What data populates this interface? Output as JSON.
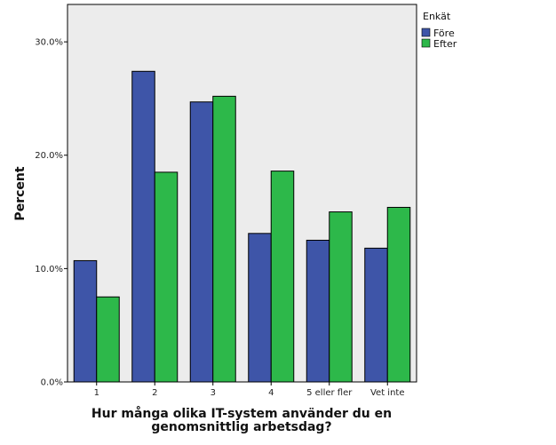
{
  "chart_data": {
    "type": "bar",
    "title": "",
    "xlabel_lines": [
      "Hur många olika IT-system använder du en",
      "genomsnittlig arbetsdag?"
    ],
    "ylabel": "Percent",
    "categories": [
      "1",
      "2",
      "3",
      "4",
      "5 eller fler",
      "Vet inte"
    ],
    "series": [
      {
        "name": "Före",
        "color": "#3e55a8",
        "values": [
          10.7,
          27.4,
          24.7,
          13.1,
          12.5,
          11.8
        ]
      },
      {
        "name": "Efter",
        "color": "#2db84a",
        "values": [
          7.5,
          18.5,
          25.2,
          18.6,
          15.0,
          15.4
        ]
      }
    ],
    "ylim": [
      0,
      33.3
    ],
    "yticks": [
      0,
      10,
      20,
      30
    ],
    "ytick_labels": [
      "0.0%",
      "10.0%",
      "20.0%",
      "30.0%"
    ],
    "legend": {
      "title": "Enkät",
      "placement": "top-right-outside"
    },
    "grid": false,
    "plot_background": "#ececec"
  }
}
